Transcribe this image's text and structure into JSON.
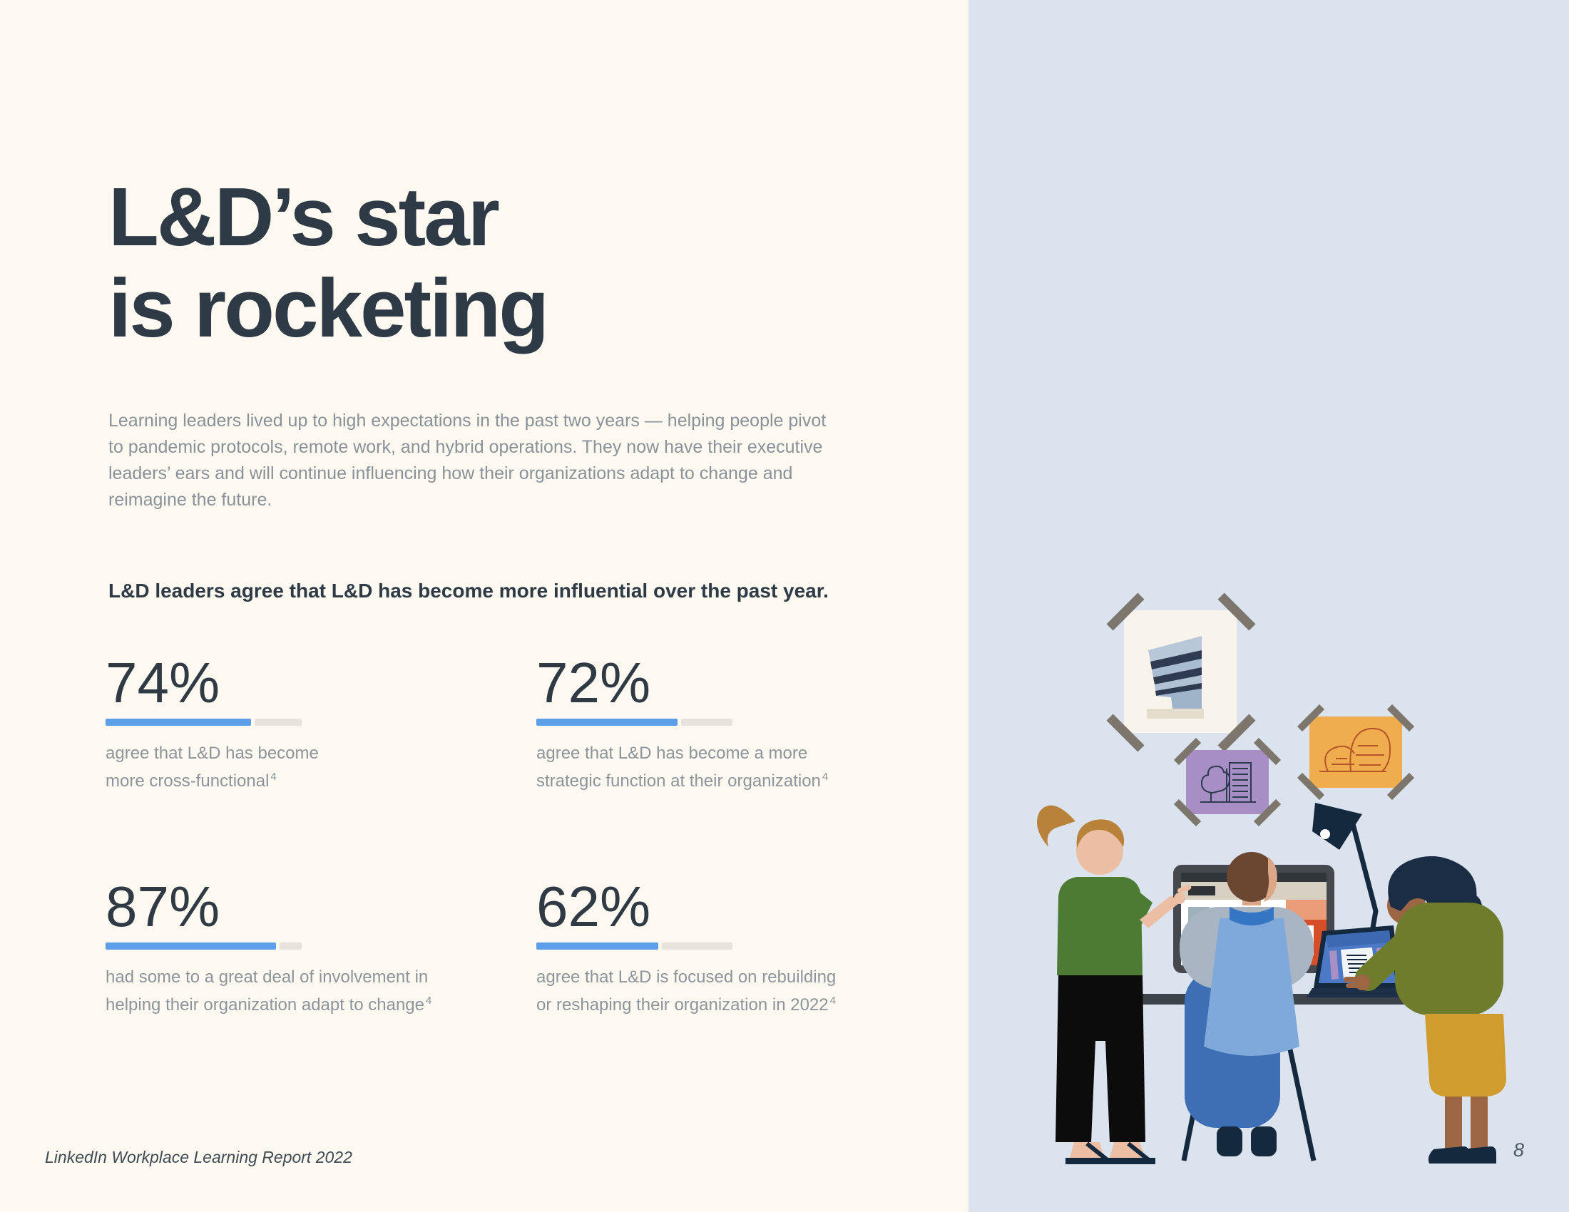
{
  "header": {
    "title_line1": "L&D’s star",
    "title_line2": "is rocketing"
  },
  "intro": {
    "text": "Learning leaders lived up to high expectations in the past two years — helping people pivot to pandemic protocols, remote work, and hybrid operations. They now have their executive leaders’ ears and will continue influencing how their organizations adapt to change and reimagine the future."
  },
  "statement": {
    "text": "L&D leaders agree that L&D has become more influential over the past year."
  },
  "stats": [
    {
      "value": "74%",
      "pct": 74,
      "caption_line1": "agree that L&D has become",
      "caption_line2": "more cross-functional",
      "footnote": "4"
    },
    {
      "value": "72%",
      "pct": 72,
      "caption_line1": "agree that L&D has become a more",
      "caption_line2": "strategic function at their organization",
      "footnote": "4"
    },
    {
      "value": "87%",
      "pct": 87,
      "caption_line1": "had some to a great deal of involvement in",
      "caption_line2": "helping their organization adapt to change",
      "footnote": "4"
    },
    {
      "value": "62%",
      "pct": 62,
      "caption_line1": "agree that L&D is focused on rebuilding",
      "caption_line2": "or reshaping their organization in 2022",
      "footnote": "4"
    }
  ],
  "footer": {
    "source": "LinkedIn Workplace Learning Report 2022",
    "page_number": "8"
  },
  "colors": {
    "left_background": "#fdf9f1",
    "right_background": "#dbe4ee",
    "heading": "#2e3a46",
    "body_text": "#8a9199",
    "accent_blue": "#5c9fe8",
    "bar_track": "#e7e3da"
  },
  "illustration": {
    "alt": "Three coworkers collaborating at a desk with a monitor, laptop and lamp under taped-up pictures"
  }
}
